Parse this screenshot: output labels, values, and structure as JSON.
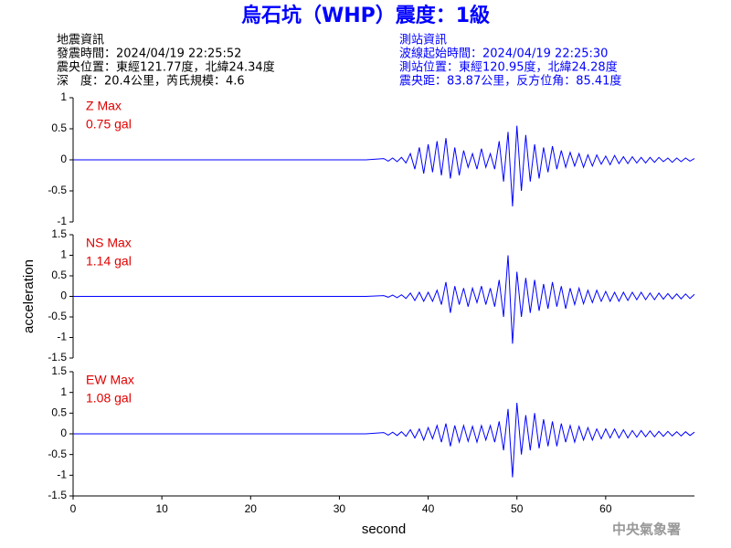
{
  "header": {
    "title": "烏石坑（WHP）震度：1級",
    "left": [
      "地震資訊",
      "發震時間：2024/04/19 22:25:52",
      "震央位置：東經121.77度，北緯24.34度",
      "深　度：20.4公里，芮氏規模：4.6"
    ],
    "right": [
      "測站資訊",
      "波線起始時間：2024/04/19 22:25:30",
      "測站位置：東經120.95度，北緯24.28度",
      "震央距：83.87公里，反方位角：85.41度"
    ],
    "footer": "中央氣象署"
  },
  "chart_data": [
    {
      "type": "line",
      "annotation": [
        "Z Max",
        "0.75 gal"
      ],
      "xlim": [
        0,
        70
      ],
      "ylim": [
        -1,
        1
      ],
      "yticks": [
        -1,
        -0.5,
        0,
        0.5,
        1
      ],
      "grid": false,
      "x": [
        0,
        33,
        35,
        35.5,
        36,
        36.5,
        37,
        37.5,
        38,
        38.5,
        39,
        39.5,
        40,
        40.5,
        41,
        41.5,
        42,
        42.5,
        43,
        43.5,
        44,
        44.5,
        45,
        45.5,
        46,
        46.5,
        47,
        47.5,
        48,
        48.5,
        49,
        49.5,
        50,
        50.5,
        51,
        51.5,
        52,
        52.5,
        53,
        53.5,
        54,
        54.5,
        55,
        55.5,
        56,
        56.5,
        57,
        57.5,
        58,
        58.5,
        59,
        59.5,
        60,
        60.5,
        61,
        61.5,
        62,
        62.5,
        63,
        63.5,
        64,
        64.5,
        65,
        65.5,
        66,
        66.5,
        67,
        67.5,
        68,
        68.5,
        69,
        69.5,
        70
      ],
      "series": [
        {
          "color": "#0000ff",
          "values": [
            0,
            0,
            0.02,
            -0.02,
            0.03,
            -0.03,
            0.04,
            -0.05,
            0.1,
            -0.15,
            0.2,
            -0.22,
            0.25,
            -0.2,
            0.3,
            -0.25,
            0.35,
            -0.3,
            0.2,
            -0.25,
            0.15,
            -0.12,
            0.1,
            -0.15,
            0.18,
            -0.12,
            0.1,
            -0.15,
            0.3,
            -0.35,
            0.45,
            -0.75,
            0.55,
            -0.5,
            0.4,
            -0.35,
            0.25,
            -0.3,
            0.2,
            -0.2,
            0.22,
            -0.15,
            0.15,
            -0.12,
            0.12,
            -0.1,
            0.1,
            -0.12,
            0.08,
            -0.1,
            0.08,
            -0.07,
            0.06,
            -0.08,
            0.07,
            -0.06,
            0.05,
            -0.06,
            0.05,
            -0.05,
            0.04,
            -0.05,
            0.04,
            -0.04,
            0.04,
            -0.03,
            0.03,
            -0.04,
            0.03,
            -0.03,
            0.03,
            -0.02,
            0.02
          ]
        }
      ]
    },
    {
      "type": "line",
      "annotation": [
        "NS Max",
        "1.14 gal"
      ],
      "ylabel": "acceleration",
      "xlim": [
        0,
        70
      ],
      "ylim": [
        -1.5,
        1.5
      ],
      "yticks": [
        -1.5,
        -1,
        -0.5,
        0,
        0.5,
        1,
        1.5
      ],
      "grid": false,
      "x": [
        0,
        33,
        35,
        35.5,
        36,
        36.5,
        37,
        37.5,
        38,
        38.5,
        39,
        39.5,
        40,
        40.5,
        41,
        41.5,
        42,
        42.5,
        43,
        43.5,
        44,
        44.5,
        45,
        45.5,
        46,
        46.5,
        47,
        47.5,
        48,
        48.5,
        49,
        49.5,
        50,
        50.5,
        51,
        51.5,
        52,
        52.5,
        53,
        53.5,
        54,
        54.5,
        55,
        55.5,
        56,
        56.5,
        57,
        57.5,
        58,
        58.5,
        59,
        59.5,
        60,
        60.5,
        61,
        61.5,
        62,
        62.5,
        63,
        63.5,
        64,
        64.5,
        65,
        65.5,
        66,
        66.5,
        67,
        67.5,
        68,
        68.5,
        69,
        69.5,
        70
      ],
      "series": [
        {
          "color": "#0000ff",
          "values": [
            0,
            0,
            0.02,
            -0.02,
            0.03,
            -0.03,
            0.04,
            -0.05,
            0.08,
            -0.1,
            0.1,
            -0.12,
            0.1,
            -0.12,
            0.15,
            -0.2,
            0.35,
            -0.4,
            0.25,
            -0.2,
            0.2,
            -0.25,
            0.2,
            -0.15,
            0.25,
            -0.2,
            0.2,
            -0.25,
            0.4,
            -0.5,
            1.0,
            -1.15,
            0.6,
            -0.5,
            0.45,
            -0.4,
            0.4,
            -0.35,
            0.3,
            -0.3,
            0.35,
            -0.25,
            0.25,
            -0.3,
            0.2,
            -0.2,
            0.2,
            -0.18,
            0.15,
            -0.15,
            0.15,
            -0.12,
            0.12,
            -0.12,
            0.1,
            -0.12,
            0.1,
            -0.1,
            0.1,
            -0.08,
            0.1,
            -0.08,
            0.08,
            -0.08,
            0.08,
            -0.07,
            0.07,
            -0.06,
            0.06,
            -0.06,
            0.06,
            -0.05,
            0.05
          ]
        }
      ]
    },
    {
      "type": "line",
      "annotation": [
        "EW Max",
        "1.08 gal"
      ],
      "xlabel": "second",
      "xlim": [
        0,
        70
      ],
      "ylim": [
        -1.5,
        1.5
      ],
      "yticks": [
        -1.5,
        -1,
        -0.5,
        0,
        0.5,
        1,
        1.5
      ],
      "xticks": [
        0,
        10,
        20,
        30,
        40,
        50,
        60
      ],
      "grid": false,
      "x": [
        0,
        33,
        35,
        35.5,
        36,
        36.5,
        37,
        37.5,
        38,
        38.5,
        39,
        39.5,
        40,
        40.5,
        41,
        41.5,
        42,
        42.5,
        43,
        43.5,
        44,
        44.5,
        45,
        45.5,
        46,
        46.5,
        47,
        47.5,
        48,
        48.5,
        49,
        49.5,
        50,
        50.5,
        51,
        51.5,
        52,
        52.5,
        53,
        53.5,
        54,
        54.5,
        55,
        55.5,
        56,
        56.5,
        57,
        57.5,
        58,
        58.5,
        59,
        59.5,
        60,
        60.5,
        61,
        61.5,
        62,
        62.5,
        63,
        63.5,
        64,
        64.5,
        65,
        65.5,
        66,
        66.5,
        67,
        67.5,
        68,
        68.5,
        69,
        69.5,
        70
      ],
      "series": [
        {
          "color": "#0000ff",
          "values": [
            0,
            0,
            0.03,
            -0.03,
            0.04,
            -0.04,
            0.05,
            -0.06,
            0.1,
            -0.1,
            0.12,
            -0.15,
            0.15,
            -0.12,
            0.2,
            -0.2,
            0.25,
            -0.3,
            0.2,
            -0.2,
            0.2,
            -0.18,
            0.18,
            -0.2,
            0.2,
            -0.15,
            0.2,
            -0.2,
            0.3,
            -0.4,
            0.6,
            -1.05,
            0.75,
            -0.5,
            0.45,
            -0.4,
            0.5,
            -0.35,
            0.35,
            -0.3,
            0.3,
            -0.3,
            0.25,
            -0.2,
            0.2,
            -0.2,
            0.18,
            -0.15,
            0.15,
            -0.15,
            0.12,
            -0.12,
            0.12,
            -0.1,
            0.12,
            -0.1,
            0.1,
            -0.1,
            0.08,
            -0.08,
            0.08,
            -0.07,
            0.07,
            -0.07,
            0.06,
            -0.06,
            0.06,
            -0.05,
            0.05,
            -0.05,
            0.05,
            -0.04,
            0.04
          ]
        }
      ]
    }
  ]
}
